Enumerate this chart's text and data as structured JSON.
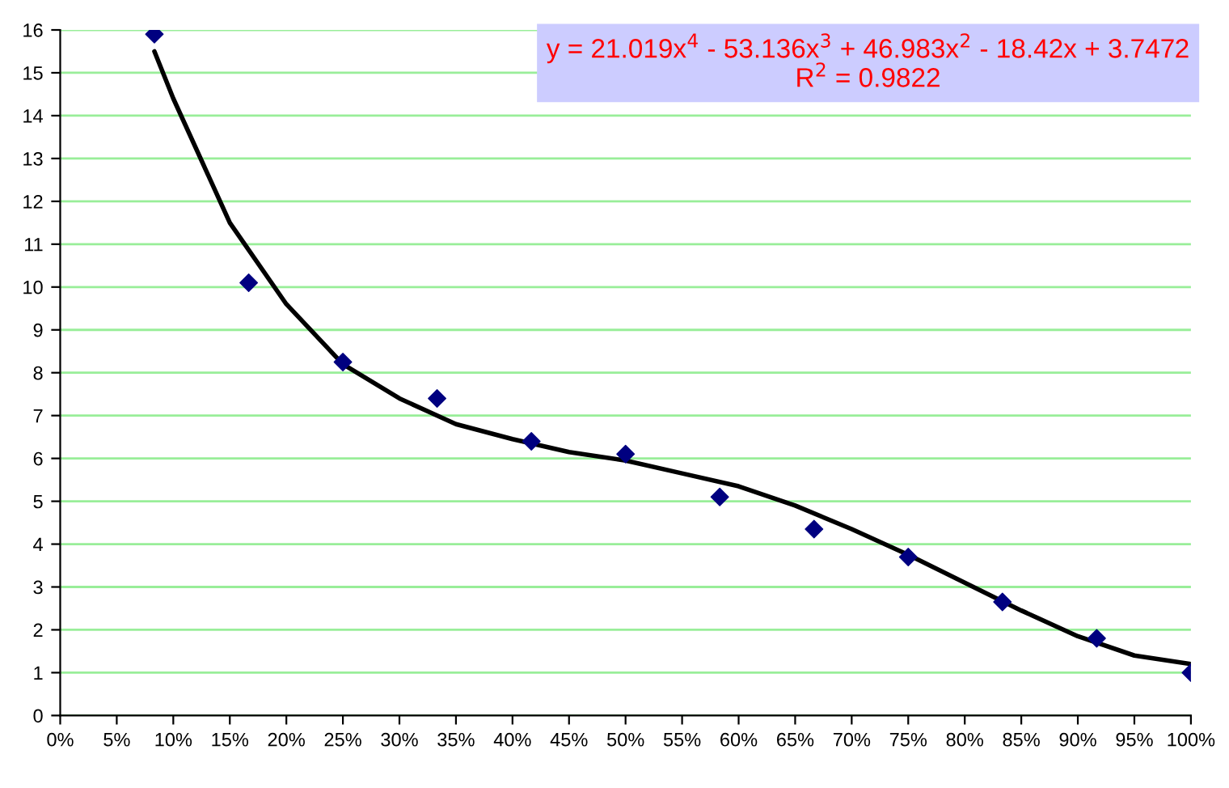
{
  "chart_data": {
    "type": "scatter",
    "xlim": [
      0,
      100
    ],
    "xticks": [
      {
        "value": 0,
        "label": "0%"
      },
      {
        "value": 5,
        "label": "5%"
      },
      {
        "value": 10,
        "label": "10%"
      },
      {
        "value": 15,
        "label": "15%"
      },
      {
        "value": 20,
        "label": "20%"
      },
      {
        "value": 25,
        "label": "25%"
      },
      {
        "value": 30,
        "label": "30%"
      },
      {
        "value": 35,
        "label": "35%"
      },
      {
        "value": 40,
        "label": "40%"
      },
      {
        "value": 45,
        "label": "45%"
      },
      {
        "value": 50,
        "label": "50%"
      },
      {
        "value": 55,
        "label": "55%"
      },
      {
        "value": 60,
        "label": "60%"
      },
      {
        "value": 65,
        "label": "65%"
      },
      {
        "value": 70,
        "label": "70%"
      },
      {
        "value": 75,
        "label": "75%"
      },
      {
        "value": 80,
        "label": "80%"
      },
      {
        "value": 85,
        "label": "85%"
      },
      {
        "value": 90,
        "label": "90%"
      },
      {
        "value": 95,
        "label": "95%"
      },
      {
        "value": 100,
        "label": "100%"
      }
    ],
    "ylim": [
      0,
      16
    ],
    "yticks": [
      0,
      1,
      2,
      3,
      4,
      5,
      6,
      7,
      8,
      9,
      10,
      11,
      12,
      13,
      14,
      15,
      16
    ],
    "grid": "y",
    "legend": false,
    "series": [
      {
        "color": "#000080",
        "marker": "diamond",
        "x": [
          8.33,
          16.67,
          25,
          33.33,
          41.67,
          50,
          58.33,
          66.67,
          75,
          83.33,
          91.67,
          100
        ],
        "values": [
          15.9,
          10.1,
          8.25,
          7.4,
          6.4,
          6.1,
          5.1,
          4.35,
          3.7,
          2.65,
          1.8,
          1.0
        ]
      },
      {
        "type": "line",
        "color": "#000000",
        "marker": "none",
        "line_style": "solid",
        "x": [
          8.33,
          10,
          15,
          20,
          25,
          30,
          35,
          40,
          45,
          50,
          55,
          60,
          65,
          70,
          75,
          80,
          85,
          90,
          95,
          100
        ],
        "values": [
          15.5,
          14.4,
          11.5,
          9.6,
          8.2,
          7.4,
          6.8,
          6.45,
          6.15,
          5.95,
          5.65,
          5.35,
          4.9,
          4.35,
          3.75,
          3.1,
          2.45,
          1.85,
          1.4,
          1.2
        ]
      }
    ],
    "annotations": [
      "y = 21.019x$^{4}$ - 53.136x$^{3}$ + 46.983x$^{2}$ - 18.42x + 3.7472",
      "R$^{2}$ = 0.9822"
    ]
  }
}
